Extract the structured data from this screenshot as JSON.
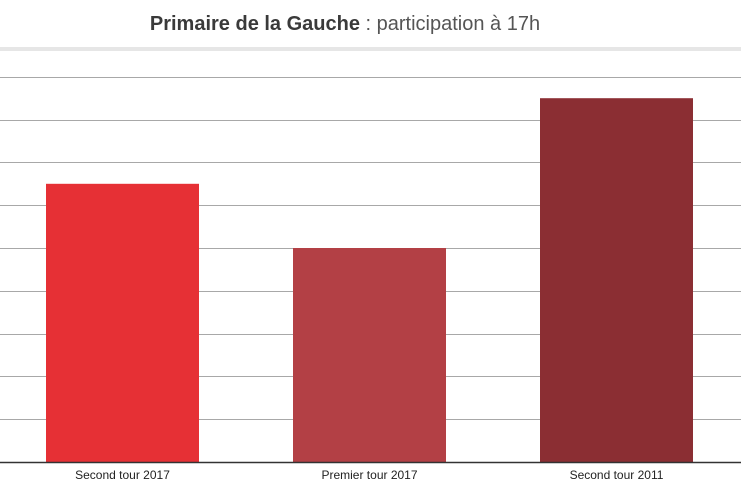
{
  "header": {
    "title_bold": "Primaire de la Gauche",
    "title_rest": " : participation à 17h"
  },
  "chart_data": {
    "type": "bar",
    "title": "Primaire de la Gauche : participation à 17h",
    "categories": [
      "Second tour 2017",
      "Premier tour 2017",
      "Second tour 2011"
    ],
    "values": [
      1.3,
      1.0,
      1.7
    ],
    "colors": [
      "#e63035",
      "#b34045",
      "#8b2e33"
    ],
    "ylim": [
      0,
      2.0
    ],
    "yticks": [
      0,
      0.2,
      0.4,
      0.6,
      0.8,
      1.0,
      1.2,
      1.4,
      1.6,
      1.8,
      2.0
    ],
    "grid": true,
    "legend": "none",
    "xlabel": "",
    "ylabel": ""
  }
}
